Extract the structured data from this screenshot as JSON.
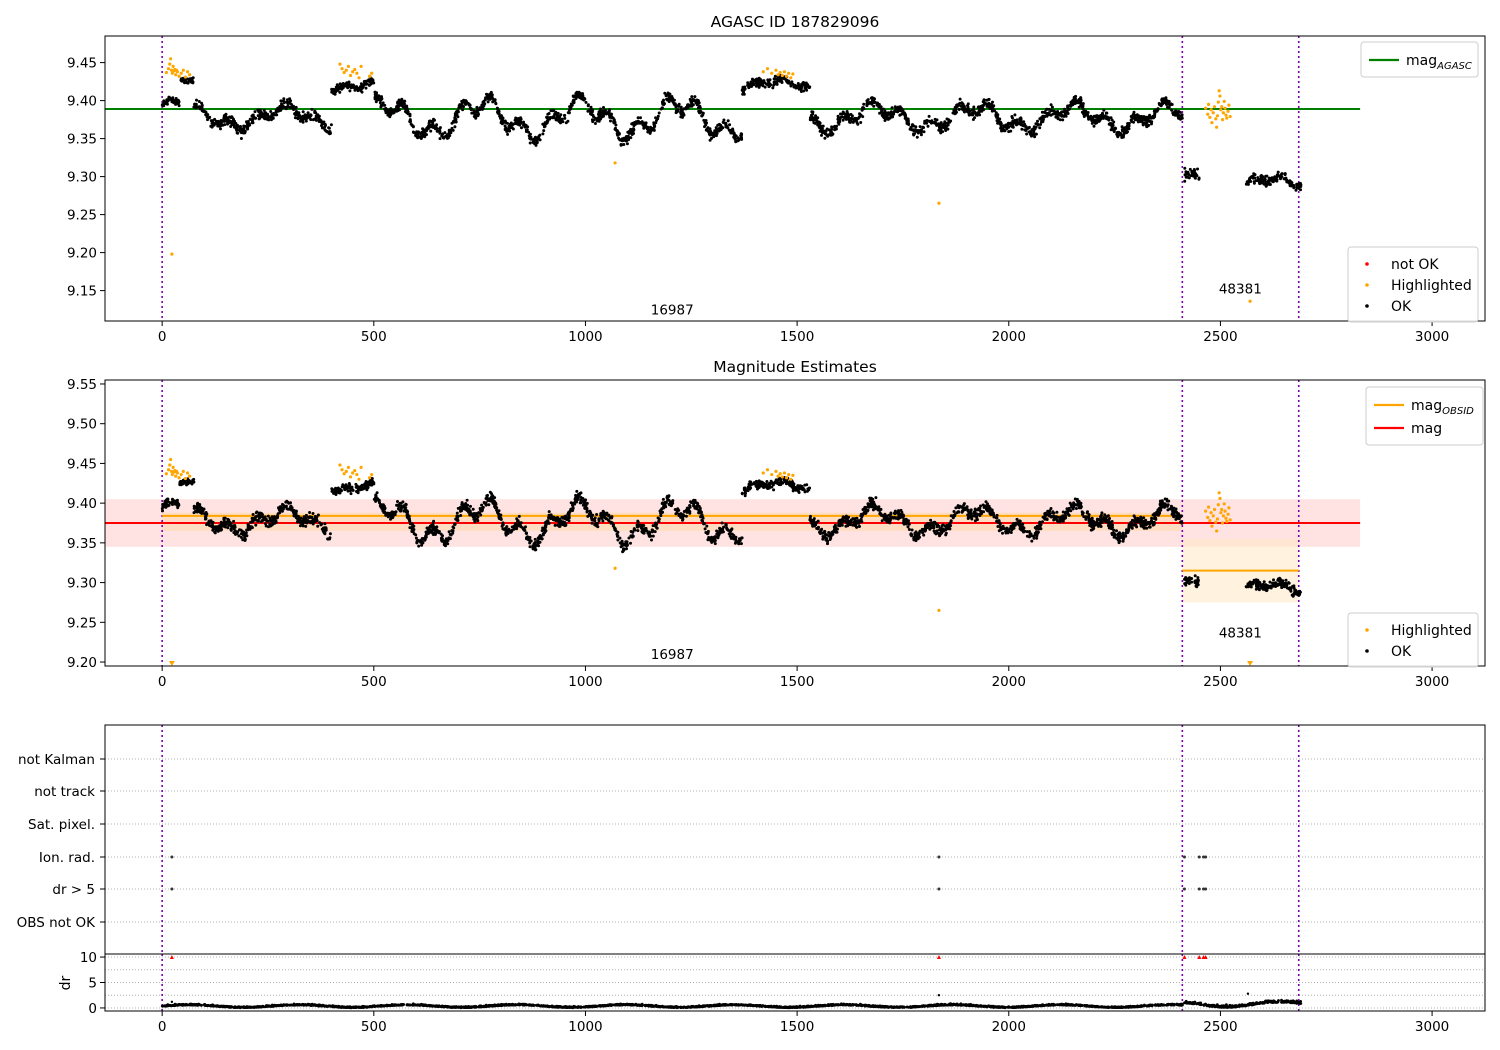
{
  "chart_data": [
    {
      "type": "scatter",
      "title": "AGASC ID 187829096",
      "xlim": [
        -135,
        3125
      ],
      "ylim": [
        9.11,
        9.485
      ],
      "x_ticks": [
        0,
        500,
        1000,
        1500,
        2000,
        2500,
        3000
      ],
      "y_ticks": [
        9.15,
        9.2,
        9.25,
        9.3,
        9.35,
        9.4,
        9.45
      ],
      "vlines": [
        0,
        2410,
        2685
      ],
      "obsid_labels": [
        {
          "text": "16987",
          "x": 1205,
          "y": 9.1185
        },
        {
          "text": "48381",
          "x": 2547,
          "y": 9.1465
        }
      ],
      "hlines": [
        {
          "name": "mag_AGASC",
          "y": 9.389,
          "x": [
            -135,
            2830
          ],
          "color": "#008000"
        }
      ],
      "legend_lines": [
        {
          "label": "mag",
          "sub": "AGASC",
          "color": "#008000"
        }
      ],
      "legend_points": [
        {
          "label": "not OK",
          "color": "#ff0000"
        },
        {
          "label": "Highlighted",
          "color": "#ffa500"
        },
        {
          "label": "OK",
          "color": "#000000"
        }
      ],
      "ok_segments": [
        {
          "x": [
            0,
            40
          ],
          "mean": 9.395,
          "amp": 0.005,
          "noise": 0.008
        },
        {
          "x": [
            40,
            75
          ],
          "mean": 9.425,
          "amp": 0.002,
          "noise": 0.005
        },
        {
          "x": [
            75,
            400
          ],
          "mean": 9.378,
          "amp": 0.012,
          "noise": 0.01
        },
        {
          "x": [
            400,
            500
          ],
          "mean": 9.42,
          "amp": 0.005,
          "noise": 0.008
        },
        {
          "x": [
            500,
            1370
          ],
          "mean": 9.377,
          "amp": 0.02,
          "noise": 0.01
        },
        {
          "x": [
            1370,
            1530
          ],
          "mean": 9.42,
          "amp": 0.006,
          "noise": 0.008
        },
        {
          "x": [
            1530,
            2410
          ],
          "mean": 9.378,
          "amp": 0.014,
          "noise": 0.01
        },
        {
          "x": [
            2415,
            2450
          ],
          "mean": 9.3,
          "amp": 0.005,
          "noise": 0.01
        },
        {
          "x": [
            2560,
            2690
          ],
          "mean": 9.292,
          "amp": 0.006,
          "noise": 0.008
        }
      ],
      "highlighted_points": [
        [
          10,
          9.437
        ],
        [
          15,
          9.442
        ],
        [
          18,
          9.448
        ],
        [
          20,
          9.455
        ],
        [
          22,
          9.44
        ],
        [
          24,
          9.436
        ],
        [
          26,
          9.445
        ],
        [
          28,
          9.439
        ],
        [
          30,
          9.441
        ],
        [
          32,
          9.434
        ],
        [
          34,
          9.44
        ],
        [
          36,
          9.438
        ],
        [
          40,
          9.432
        ],
        [
          45,
          9.436
        ],
        [
          50,
          9.44
        ],
        [
          55,
          9.431
        ],
        [
          60,
          9.438
        ],
        [
          65,
          9.434
        ],
        [
          23,
          9.198
        ],
        [
          420,
          9.448
        ],
        [
          425,
          9.442
        ],
        [
          430,
          9.437
        ],
        [
          435,
          9.44
        ],
        [
          440,
          9.445
        ],
        [
          445,
          9.433
        ],
        [
          450,
          9.438
        ],
        [
          455,
          9.441
        ],
        [
          460,
          9.436
        ],
        [
          465,
          9.43
        ],
        [
          470,
          9.445
        ],
        [
          490,
          9.432
        ],
        [
          495,
          9.436
        ],
        [
          1070,
          9.318
        ],
        [
          1835,
          9.265
        ],
        [
          1420,
          9.438
        ],
        [
          1430,
          9.442
        ],
        [
          1440,
          9.436
        ],
        [
          1450,
          9.44
        ],
        [
          1455,
          9.434
        ],
        [
          1460,
          9.437
        ],
        [
          1465,
          9.433
        ],
        [
          1470,
          9.438
        ],
        [
          1475,
          9.432
        ],
        [
          1480,
          9.436
        ],
        [
          1485,
          9.43
        ],
        [
          1490,
          9.435
        ],
        [
          2465,
          9.39
        ],
        [
          2470,
          9.382
        ],
        [
          2472,
          9.395
        ],
        [
          2475,
          9.378
        ],
        [
          2478,
          9.388
        ],
        [
          2480,
          9.371
        ],
        [
          2483,
          9.384
        ],
        [
          2486,
          9.392
        ],
        [
          2489,
          9.376
        ],
        [
          2491,
          9.365
        ],
        [
          2493,
          9.38
        ],
        [
          2495,
          9.398
        ],
        [
          2497,
          9.413
        ],
        [
          2499,
          9.406
        ],
        [
          2501,
          9.388
        ],
        [
          2503,
          9.392
        ],
        [
          2505,
          9.375
        ],
        [
          2507,
          9.384
        ],
        [
          2509,
          9.399
        ],
        [
          2511,
          9.39
        ],
        [
          2513,
          9.381
        ],
        [
          2515,
          9.377
        ],
        [
          2518,
          9.386
        ],
        [
          2520,
          9.394
        ],
        [
          2523,
          9.379
        ],
        [
          2570,
          9.136
        ]
      ]
    },
    {
      "type": "scatter",
      "title": "Magnitude Estimates",
      "xlim": [
        -135,
        3125
      ],
      "ylim": [
        9.195,
        9.555
      ],
      "x_ticks": [
        0,
        500,
        1000,
        1500,
        2000,
        2500,
        3000
      ],
      "y_ticks": [
        9.2,
        9.25,
        9.3,
        9.35,
        9.4,
        9.45,
        9.5,
        9.55
      ],
      "vlines": [
        0,
        2410,
        2685
      ],
      "obsid_labels": [
        {
          "text": "16987",
          "x": 1205,
          "y": 9.2035
        },
        {
          "text": "48381",
          "x": 2547,
          "y": 9.231
        }
      ],
      "bands": [
        {
          "name": "mag-std",
          "x": [
            -135,
            2830
          ],
          "y": [
            9.345,
            9.405
          ],
          "color": "#ffcccc"
        },
        {
          "name": "obsid-16987-std",
          "x": [
            0,
            2410
          ],
          "y": [
            9.365,
            9.388
          ],
          "color": "#ffd9a8"
        },
        {
          "name": "obsid-48381-std",
          "x": [
            2410,
            2685
          ],
          "y": [
            9.275,
            9.355
          ],
          "color": "#ffe9c7"
        }
      ],
      "hlines": [
        {
          "name": "mag_OBSID-16987",
          "y": 9.384,
          "x": [
            0,
            2410
          ],
          "color": "#ffa500"
        },
        {
          "name": "mag_OBSID-48381",
          "y": 9.315,
          "x": [
            2410,
            2685
          ],
          "color": "#ffa500"
        },
        {
          "name": "mag",
          "y": 9.375,
          "x": [
            -135,
            2830
          ],
          "color": "#ff0000"
        }
      ],
      "legend_lines": [
        {
          "label": "mag",
          "sub": "OBSID",
          "color": "#ffa500"
        },
        {
          "label": "mag",
          "sub": "",
          "color": "#ff0000"
        }
      ],
      "legend_points": [
        {
          "label": "Highlighted",
          "color": "#ffa500"
        },
        {
          "label": "OK",
          "color": "#000000"
        }
      ],
      "ok_segments": [
        {
          "x": [
            0,
            40
          ],
          "mean": 9.395,
          "amp": 0.005,
          "noise": 0.008
        },
        {
          "x": [
            40,
            75
          ],
          "mean": 9.425,
          "amp": 0.002,
          "noise": 0.005
        },
        {
          "x": [
            75,
            400
          ],
          "mean": 9.378,
          "amp": 0.012,
          "noise": 0.01
        },
        {
          "x": [
            400,
            500
          ],
          "mean": 9.42,
          "amp": 0.005,
          "noise": 0.008
        },
        {
          "x": [
            500,
            1370
          ],
          "mean": 9.377,
          "amp": 0.02,
          "noise": 0.01
        },
        {
          "x": [
            1370,
            1530
          ],
          "mean": 9.42,
          "amp": 0.006,
          "noise": 0.008
        },
        {
          "x": [
            1530,
            2410
          ],
          "mean": 9.378,
          "amp": 0.014,
          "noise": 0.01
        },
        {
          "x": [
            2415,
            2450
          ],
          "mean": 9.3,
          "amp": 0.005,
          "noise": 0.01
        },
        {
          "x": [
            2560,
            2690
          ],
          "mean": 9.292,
          "amp": 0.006,
          "noise": 0.008
        }
      ],
      "highlighted_points": [
        [
          10,
          9.437
        ],
        [
          15,
          9.442
        ],
        [
          18,
          9.448
        ],
        [
          20,
          9.455
        ],
        [
          22,
          9.44
        ],
        [
          24,
          9.436
        ],
        [
          26,
          9.445
        ],
        [
          28,
          9.439
        ],
        [
          30,
          9.441
        ],
        [
          32,
          9.434
        ],
        [
          34,
          9.44
        ],
        [
          36,
          9.438
        ],
        [
          40,
          9.432
        ],
        [
          45,
          9.436
        ],
        [
          50,
          9.44
        ],
        [
          55,
          9.431
        ],
        [
          60,
          9.438
        ],
        [
          65,
          9.434
        ],
        [
          420,
          9.448
        ],
        [
          425,
          9.442
        ],
        [
          430,
          9.437
        ],
        [
          435,
          9.44
        ],
        [
          440,
          9.445
        ],
        [
          445,
          9.433
        ],
        [
          450,
          9.438
        ],
        [
          455,
          9.441
        ],
        [
          460,
          9.436
        ],
        [
          465,
          9.43
        ],
        [
          470,
          9.445
        ],
        [
          490,
          9.432
        ],
        [
          495,
          9.436
        ],
        [
          1070,
          9.318
        ],
        [
          1835,
          9.265
        ],
        [
          1420,
          9.438
        ],
        [
          1430,
          9.442
        ],
        [
          1440,
          9.436
        ],
        [
          1450,
          9.44
        ],
        [
          1455,
          9.434
        ],
        [
          1460,
          9.437
        ],
        [
          1465,
          9.433
        ],
        [
          1470,
          9.438
        ],
        [
          1475,
          9.432
        ],
        [
          1480,
          9.436
        ],
        [
          1485,
          9.43
        ],
        [
          1490,
          9.435
        ],
        [
          2465,
          9.39
        ],
        [
          2470,
          9.382
        ],
        [
          2472,
          9.395
        ],
        [
          2475,
          9.378
        ],
        [
          2478,
          9.388
        ],
        [
          2480,
          9.371
        ],
        [
          2483,
          9.384
        ],
        [
          2486,
          9.392
        ],
        [
          2489,
          9.376
        ],
        [
          2491,
          9.365
        ],
        [
          2493,
          9.38
        ],
        [
          2495,
          9.398
        ],
        [
          2497,
          9.413
        ],
        [
          2499,
          9.406
        ],
        [
          2501,
          9.388
        ],
        [
          2503,
          9.392
        ],
        [
          2505,
          9.375
        ],
        [
          2507,
          9.384
        ],
        [
          2509,
          9.399
        ],
        [
          2511,
          9.39
        ],
        [
          2513,
          9.381
        ],
        [
          2515,
          9.377
        ],
        [
          2518,
          9.386
        ],
        [
          2520,
          9.394
        ],
        [
          2523,
          9.379
        ]
      ],
      "out_of_range_markers": [
        23,
        2570
      ]
    },
    {
      "type": "scatter",
      "title": "",
      "xlim": [
        -135,
        3125
      ],
      "x_ticks": [
        0,
        500,
        1000,
        1500,
        2000,
        2500,
        3000
      ],
      "vlines": [
        0,
        2410,
        2685
      ],
      "flag_rows": [
        "not Kalman",
        "not track",
        "Sat. pixel.",
        "Ion. rad.",
        "dr > 5",
        "OBS not OK"
      ],
      "flag_points": {
        "Ion. rad.": [
          23,
          1835,
          2415,
          2450,
          2460,
          2465
        ],
        "dr > 5": [
          23,
          1835,
          2415,
          2450,
          2460,
          2465
        ]
      }
    },
    {
      "type": "scatter",
      "title": "",
      "xlim": [
        -135,
        3125
      ],
      "ylim": [
        -0.6,
        10.6
      ],
      "x_ticks": [
        0,
        500,
        1000,
        1500,
        2000,
        2500,
        3000
      ],
      "y_ticks": [
        0,
        5,
        10
      ],
      "ylabel": "dr",
      "vlines": [
        0,
        2410,
        2685
      ],
      "dr_segments": [
        {
          "x": [
            0,
            2410
          ],
          "mean": 0.3,
          "amp": 0.25,
          "noise": 0.15
        },
        {
          "x": [
            2415,
            2455
          ],
          "mean": 0.7,
          "amp": 0.4,
          "noise": 0.3
        },
        {
          "x": [
            2460,
            2690
          ],
          "mean": 0.6,
          "amp": 0.5,
          "noise": 0.3
        }
      ],
      "dr_extra": [
        [
          1835,
          2.5
        ],
        [
          23,
          1.2
        ],
        [
          2565,
          2.8
        ]
      ],
      "dr_flagged": [
        [
          23,
          10
        ],
        [
          1835,
          10
        ],
        [
          2415,
          10
        ],
        [
          2450,
          10
        ],
        [
          2460,
          10
        ],
        [
          2465,
          10
        ]
      ]
    }
  ]
}
